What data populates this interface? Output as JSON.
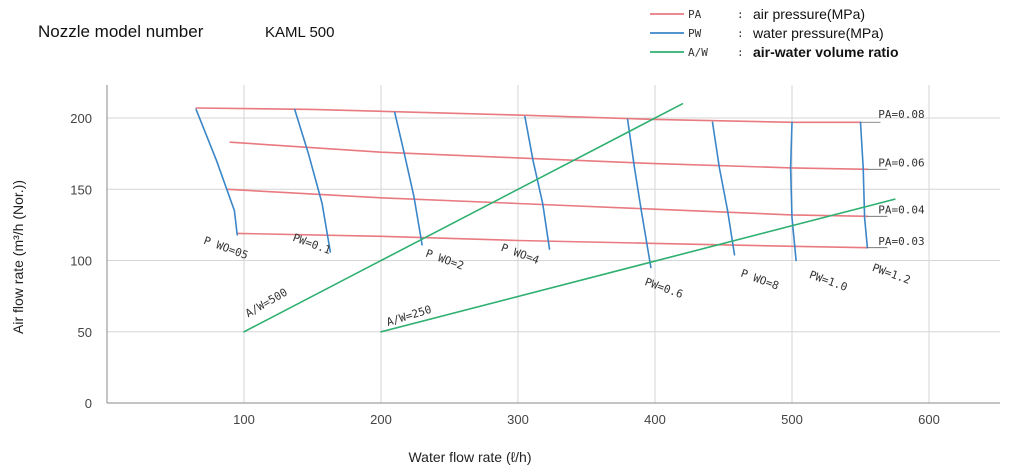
{
  "chart_data": {
    "type": "line",
    "title": "Nozzle model number",
    "model": "KAML 500",
    "xlabel": "Water flow rate (ℓ/h)",
    "ylabel": "Air flow rate (m³/h (Nor.))",
    "xlim": [
      0,
      650
    ],
    "ylim": [
      0,
      220
    ],
    "xticks": [
      100,
      200,
      300,
      400,
      500,
      600
    ],
    "yticks": [
      0,
      50,
      100,
      150,
      200
    ],
    "grid": true,
    "legend_position": "top-right",
    "colors": {
      "PA": "#e87a80",
      "PW": "#3a86c8",
      "A/W": "#2fb070"
    },
    "legend": [
      {
        "key": "PA",
        "code": "PA",
        "sep": ":",
        "label": "air pressure(MPa)"
      },
      {
        "key": "PW",
        "code": "PW",
        "sep": ":",
        "label": "water pressure(MPa)"
      },
      {
        "key": "A/W",
        "code": "A/W",
        "sep": ":",
        "label": "air-water volume ratio"
      }
    ],
    "series": [
      {
        "group": "PA",
        "name": "PA=0.08",
        "x": [
          65,
          150,
          300,
          400,
          500,
          550
        ],
        "y": [
          207,
          206,
          202,
          199,
          197,
          197
        ]
      },
      {
        "group": "PA",
        "name": "PA=0.06",
        "x": [
          90,
          200,
          300,
          400,
          500,
          555
        ],
        "y": [
          183,
          176,
          172,
          168,
          165,
          164
        ]
      },
      {
        "group": "PA",
        "name": "PA=0.04",
        "x": [
          88,
          200,
          300,
          400,
          500,
          555
        ],
        "y": [
          150,
          144,
          140,
          136,
          132,
          131
        ]
      },
      {
        "group": "PA",
        "name": "PA=0.03",
        "x": [
          95,
          200,
          300,
          400,
          500,
          555
        ],
        "y": [
          119,
          117,
          114,
          112,
          110,
          109
        ]
      },
      {
        "group": "PW",
        "name": "PW=0.05",
        "x": [
          65,
          80,
          93,
          95
        ],
        "y": [
          206,
          170,
          135,
          118
        ]
      },
      {
        "group": "PW",
        "name": "PW=0.1",
        "x": [
          137,
          147,
          157,
          163
        ],
        "y": [
          206,
          175,
          140,
          106
        ]
      },
      {
        "group": "PW",
        "name": "PW=0.2",
        "x": [
          210,
          217,
          224,
          230
        ],
        "y": [
          204,
          175,
          145,
          111
        ]
      },
      {
        "group": "PW",
        "name": "PW=0.4",
        "x": [
          305,
          311,
          318,
          323
        ],
        "y": [
          201,
          170,
          140,
          108
        ]
      },
      {
        "group": "PW",
        "name": "PW=0.6",
        "x": [
          380,
          385,
          390,
          397
        ],
        "y": [
          199,
          165,
          135,
          95
        ]
      },
      {
        "group": "PW",
        "name": "PW=0.8",
        "x": [
          442,
          447,
          453,
          458
        ],
        "y": [
          197,
          165,
          135,
          104
        ]
      },
      {
        "group": "PW",
        "name": "PW=1.0",
        "x": [
          500,
          499,
          500,
          503
        ],
        "y": [
          197,
          165,
          130,
          100
        ]
      },
      {
        "group": "PW",
        "name": "PW=1.2",
        "x": [
          550,
          552,
          553,
          555
        ],
        "y": [
          197,
          165,
          130,
          109
        ]
      },
      {
        "group": "A/W",
        "name": "A/W=500",
        "x": [
          100,
          420
        ],
        "y": [
          50,
          210
        ]
      },
      {
        "group": "A/W",
        "name": "A/W=250",
        "x": [
          200,
          575
        ],
        "y": [
          50,
          143
        ]
      }
    ],
    "annotations": [
      {
        "text": "PA=0.08",
        "x": 563,
        "y": 200,
        "rotate": 0
      },
      {
        "text": "PA=0.06",
        "x": 563,
        "y": 166,
        "rotate": 0
      },
      {
        "text": "PA=0.04",
        "x": 563,
        "y": 133,
        "rotate": 0
      },
      {
        "text": "PA=0.03",
        "x": 563,
        "y": 111,
        "rotate": 0
      },
      {
        "text": "P WO=05",
        "x": 70,
        "y": 112,
        "rotate": 20
      },
      {
        "text": "PW=0.1",
        "x": 135,
        "y": 114,
        "rotate": 20
      },
      {
        "text": "P WO=2",
        "x": 232,
        "y": 103,
        "rotate": 20
      },
      {
        "text": "P WO=4",
        "x": 287,
        "y": 107,
        "rotate": 20
      },
      {
        "text": "PW=0.6",
        "x": 392,
        "y": 83,
        "rotate": 20
      },
      {
        "text": "P WO=8",
        "x": 462,
        "y": 89,
        "rotate": 20
      },
      {
        "text": "PW=1.0",
        "x": 512,
        "y": 88,
        "rotate": 20
      },
      {
        "text": "PW=1.2",
        "x": 558,
        "y": 93,
        "rotate": 20
      },
      {
        "text": "A/W=500",
        "x": 103,
        "y": 60,
        "rotate": -30
      },
      {
        "text": "A/W=250",
        "x": 205,
        "y": 54,
        "rotate": -17
      }
    ]
  }
}
